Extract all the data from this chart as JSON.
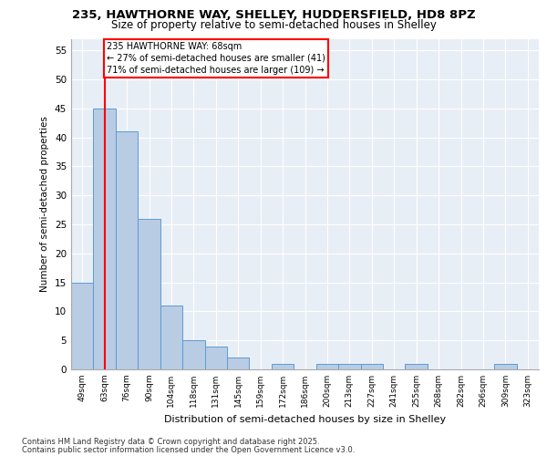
{
  "title_line1": "235, HAWTHORNE WAY, SHELLEY, HUDDERSFIELD, HD8 8PZ",
  "title_line2": "Size of property relative to semi-detached houses in Shelley",
  "xlabel": "Distribution of semi-detached houses by size in Shelley",
  "ylabel": "Number of semi-detached properties",
  "categories": [
    "49sqm",
    "63sqm",
    "76sqm",
    "90sqm",
    "104sqm",
    "118sqm",
    "131sqm",
    "145sqm",
    "159sqm",
    "172sqm",
    "186sqm",
    "200sqm",
    "213sqm",
    "227sqm",
    "241sqm",
    "255sqm",
    "268sqm",
    "282sqm",
    "296sqm",
    "309sqm",
    "323sqm"
  ],
  "values": [
    15,
    45,
    41,
    26,
    11,
    5,
    4,
    2,
    0,
    1,
    0,
    1,
    1,
    1,
    0,
    1,
    0,
    0,
    0,
    1,
    0
  ],
  "bar_color": "#b8cce4",
  "bar_edge_color": "#5b9bd5",
  "property_line_x": 1.0,
  "property_size": "68sqm",
  "pct_smaller": 27,
  "n_smaller": 41,
  "pct_larger": 71,
  "n_larger": 109,
  "ylim": [
    0,
    57
  ],
  "yticks": [
    0,
    5,
    10,
    15,
    20,
    25,
    30,
    35,
    40,
    45,
    50,
    55
  ],
  "background_color": "#e8eef5",
  "footer_line1": "Contains HM Land Registry data © Crown copyright and database right 2025.",
  "footer_line2": "Contains public sector information licensed under the Open Government Licence v3.0."
}
